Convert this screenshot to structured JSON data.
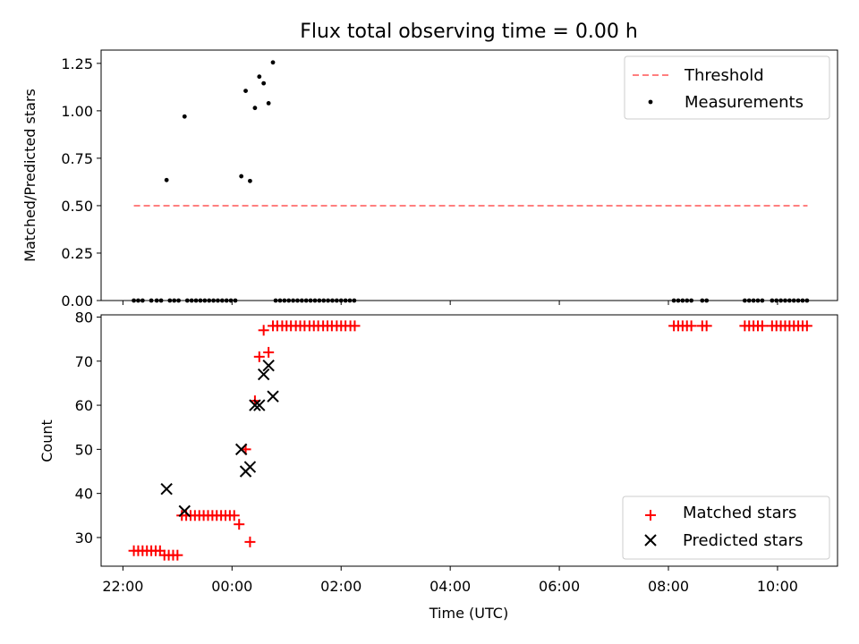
{
  "chart_data": [
    {
      "type": "scatter",
      "title": "Flux total observing time = 0.00 h",
      "xlabel": "",
      "ylabel": "Matched/Predicted stars",
      "xlim": [
        -2.4,
        11.1
      ],
      "ylim": [
        0.0,
        1.32
      ],
      "yticks": [
        0.0,
        0.25,
        0.5,
        0.75,
        1.0,
        1.25
      ],
      "ytick_labels": [
        "0.00",
        "0.25",
        "0.50",
        "0.75",
        "1.00",
        "1.25"
      ],
      "xticks": [
        -2,
        0,
        2,
        4,
        6,
        8,
        10
      ],
      "legend_position": "top-right",
      "threshold": {
        "name": "Threshold",
        "value": 0.5,
        "x_range": [
          -1.8,
          10.55
        ],
        "color": "#ff7f7f"
      },
      "series": [
        {
          "name": "Measurements",
          "color": "#000000",
          "marker": "dot",
          "x": [
            -1.8,
            -1.72,
            -1.64,
            -1.48,
            -1.38,
            -1.3,
            -1.14,
            -1.06,
            -0.98,
            -0.82,
            -0.74,
            -0.66,
            -0.58,
            -0.5,
            -0.42,
            -0.34,
            -0.26,
            -0.18,
            -0.1,
            -0.02,
            0.06,
            0.8,
            0.88,
            0.96,
            1.04,
            1.12,
            1.2,
            1.28,
            1.36,
            1.44,
            1.52,
            1.6,
            1.68,
            1.76,
            1.84,
            1.92,
            2.0,
            2.08,
            2.16,
            2.24,
            8.1,
            8.18,
            8.26,
            8.34,
            8.42,
            8.62,
            8.7,
            9.4,
            9.48,
            9.56,
            9.64,
            9.72,
            9.9,
            9.98,
            10.06,
            10.14,
            10.22,
            10.3,
            10.38,
            10.46,
            10.54,
            -1.2,
            -0.87,
            0.17,
            0.25,
            0.33,
            0.42,
            0.5,
            0.58,
            0.67,
            0.75
          ],
          "y": [
            0,
            0,
            0,
            0,
            0,
            0,
            0,
            0,
            0,
            0,
            0,
            0,
            0,
            0,
            0,
            0,
            0,
            0,
            0,
            0,
            0,
            0,
            0,
            0,
            0,
            0,
            0,
            0,
            0,
            0,
            0,
            0,
            0,
            0,
            0,
            0,
            0,
            0,
            0,
            0,
            0,
            0,
            0,
            0,
            0,
            0,
            0,
            0,
            0,
            0,
            0,
            0,
            0,
            0,
            0,
            0,
            0,
            0,
            0,
            0,
            0,
            0.635,
            0.97,
            0.655,
            1.105,
            0.63,
            1.015,
            1.18,
            1.145,
            1.04,
            1.255
          ]
        }
      ]
    },
    {
      "type": "scatter",
      "title": "",
      "xlabel": "Time (UTC)",
      "ylabel": "Count",
      "xlim": [
        -2.4,
        11.1
      ],
      "ylim": [
        23.5,
        80.5
      ],
      "yticks": [
        30,
        40,
        50,
        60,
        70,
        80
      ],
      "ytick_labels": [
        "30",
        "40",
        "50",
        "60",
        "70",
        "80"
      ],
      "xticks": [
        -2,
        0,
        2,
        4,
        6,
        8,
        10
      ],
      "xtick_labels": [
        "22:00",
        "00:00",
        "02:00",
        "04:00",
        "06:00",
        "08:00",
        "10:00"
      ],
      "legend_position": "bottom-right",
      "series": [
        {
          "name": "Matched stars",
          "color": "#ff0000",
          "marker": "plus",
          "x": [
            -1.8,
            -1.72,
            -1.64,
            -1.56,
            -1.48,
            -1.4,
            -1.32,
            -1.24,
            -1.16,
            -1.08,
            -1.0,
            -0.92,
            -0.84,
            -0.76,
            -0.68,
            -0.6,
            -0.52,
            -0.44,
            -0.36,
            -0.28,
            -0.2,
            -0.12,
            -0.04,
            0.04,
            0.13,
            0.25,
            0.33,
            0.42,
            0.5,
            0.58,
            0.67,
            0.75,
            0.83,
            0.92,
            1.0,
            1.08,
            1.17,
            1.25,
            1.33,
            1.42,
            1.5,
            1.58,
            1.67,
            1.75,
            1.83,
            1.92,
            2.0,
            2.08,
            2.17,
            2.25,
            8.1,
            8.18,
            8.26,
            8.34,
            8.42,
            8.62,
            8.7,
            9.4,
            9.48,
            9.56,
            9.64,
            9.72,
            9.9,
            9.98,
            10.06,
            10.14,
            10.22,
            10.3,
            10.38,
            10.46,
            10.54
          ],
          "y": [
            27,
            27,
            27,
            27,
            27,
            27,
            27,
            26,
            26,
            26,
            26,
            35,
            35,
            35,
            35,
            35,
            35,
            35,
            35,
            35,
            35,
            35,
            35,
            35,
            33,
            50,
            29,
            61,
            71,
            77,
            72,
            78,
            78,
            78,
            78,
            78,
            78,
            78,
            78,
            78,
            78,
            78,
            78,
            78,
            78,
            78,
            78,
            78,
            78,
            78,
            78,
            78,
            78,
            78,
            78,
            78,
            78,
            78,
            78,
            78,
            78,
            78,
            78,
            78,
            78,
            78,
            78,
            78,
            78,
            78,
            78
          ]
        },
        {
          "name": "Predicted stars",
          "color": "#000000",
          "marker": "x",
          "x": [
            -1.2,
            -0.87,
            0.17,
            0.25,
            0.33,
            0.42,
            0.5,
            0.58,
            0.67,
            0.75
          ],
          "y": [
            41,
            36,
            50,
            45,
            46,
            60,
            60,
            67,
            69,
            62
          ]
        }
      ]
    }
  ]
}
